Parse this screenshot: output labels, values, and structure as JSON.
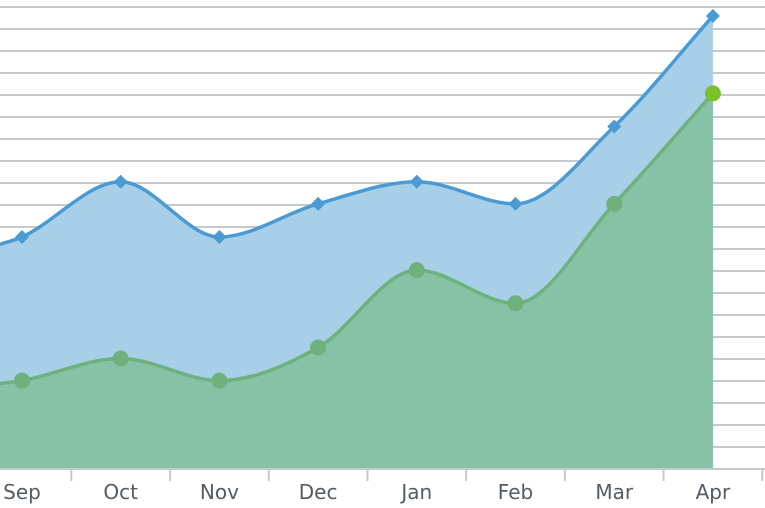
{
  "chart_data": {
    "type": "area",
    "title": "",
    "xlabel": "",
    "ylabel": "",
    "categories": [
      "Sep",
      "Oct",
      "Nov",
      "Dec",
      "Jan",
      "Feb",
      "Mar",
      "Apr"
    ],
    "ylim": [
      0,
      21
    ],
    "grid": true,
    "legend": "none",
    "series": [
      {
        "marker": "diamond",
        "color": "#4a9ad4",
        "fill": "#a8cfe8",
        "values": [
          10.5,
          13.0,
          10.5,
          12.0,
          13.0,
          12.0,
          15.5,
          20.5
        ]
      },
      {
        "marker": "circle",
        "color": "#6fb17c",
        "fill": "#86c2a6",
        "values": [
          4.0,
          5.0,
          4.0,
          5.5,
          9.0,
          7.5,
          12.0,
          17.0
        ]
      }
    ],
    "last_point_color": "#7cc02a",
    "gridline_color": "#c7c9cc"
  }
}
